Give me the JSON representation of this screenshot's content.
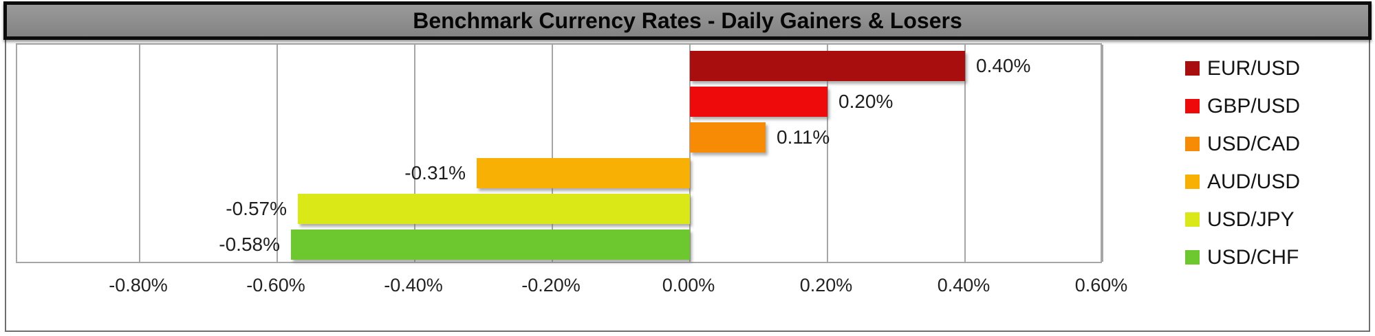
{
  "title_bar": {
    "text": "Benchmark Currency Rates - Daily Gainers & Losers"
  },
  "chart_data": {
    "type": "bar",
    "orientation": "horizontal",
    "title": "Benchmark Currency Rates - Daily Gainers & Losers",
    "categories": [
      "EUR/USD",
      "GBP/USD",
      "USD/CAD",
      "AUD/USD",
      "USD/JPY",
      "USD/CHF"
    ],
    "values": [
      0.4,
      0.2,
      0.11,
      -0.31,
      -0.57,
      -0.58
    ],
    "data_labels": [
      "0.40%",
      "0.20%",
      "0.11%",
      "-0.31%",
      "-0.57%",
      "-0.58%"
    ],
    "bar_colors": [
      "#A90E0E",
      "#EE0A0A",
      "#F78B05",
      "#F9B005",
      "#D9E816",
      "#6DC72E"
    ],
    "xlabel": "",
    "ylabel": "",
    "x_tick_labels": [
      "-0.80%",
      "-0.60%",
      "-0.40%",
      "-0.20%",
      "0.00%",
      "0.20%",
      "0.40%",
      "0.60%"
    ],
    "x_tick_values": [
      -0.8,
      -0.6,
      -0.4,
      -0.2,
      0.0,
      0.2,
      0.4,
      0.6
    ],
    "xlim": [
      -0.978,
      0.601
    ],
    "grid": true,
    "legend_position": "right",
    "legend": [
      {
        "label": "EUR/USD",
        "color": "#A90E0E"
      },
      {
        "label": "GBP/USD",
        "color": "#EE0A0A"
      },
      {
        "label": "USD/CAD",
        "color": "#F78B05"
      },
      {
        "label": "AUD/USD",
        "color": "#F9B005"
      },
      {
        "label": "USD/JPY",
        "color": "#D9E816"
      },
      {
        "label": "USD/CHF",
        "color": "#6DC72E"
      }
    ]
  },
  "style": {
    "title_background": "#8C8C8C",
    "title_border": "#0C0C0C",
    "grid_color": "#A6A6A6",
    "plot_border_color": "#A6A6A6",
    "outer_border_color": "#6E6E6E",
    "text_color": "#1E1E1E"
  }
}
